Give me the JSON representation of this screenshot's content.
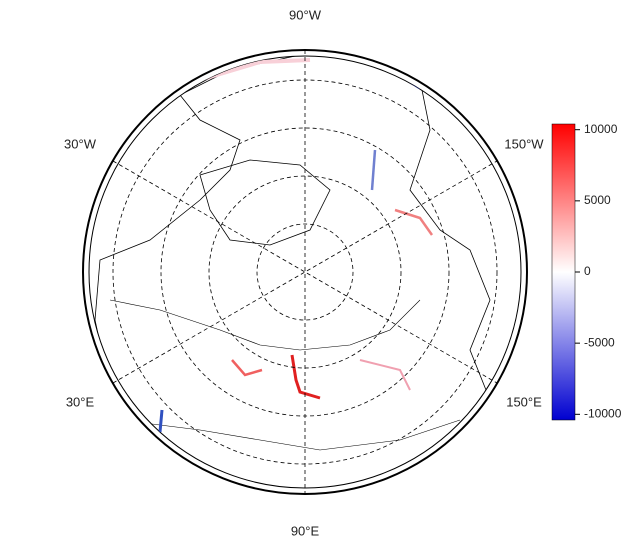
{
  "map": {
    "longitude_labels": [
      "90°W",
      "30°W",
      "150°W",
      "30°E",
      "150°E",
      "90°E"
    ]
  },
  "colorbar": {
    "lim": [
      -10400,
      10400
    ],
    "ticks": [
      10000,
      5000,
      0,
      -5000,
      -10000
    ]
  }
}
